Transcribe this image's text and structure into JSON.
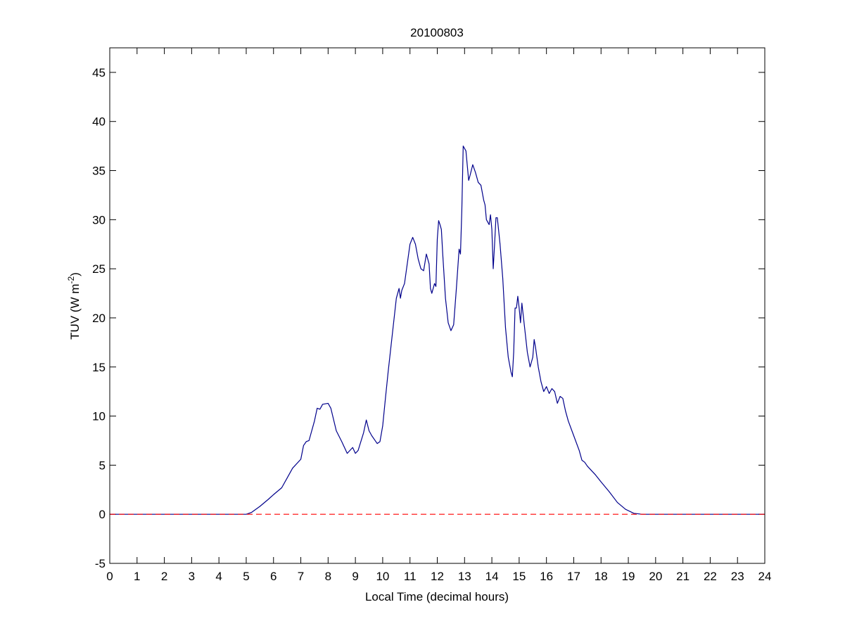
{
  "chart_data": {
    "type": "line",
    "title": "20100803",
    "xlabel": "Local Time (decimal hours)",
    "ylabel": {
      "base": "TUV (W m",
      "superscript": "-2",
      "suffix": ")"
    },
    "xlim": [
      0,
      24
    ],
    "ylim": [
      -5,
      47.5
    ],
    "xticks": [
      0,
      1,
      2,
      3,
      4,
      5,
      6,
      7,
      8,
      9,
      10,
      11,
      12,
      13,
      14,
      15,
      16,
      17,
      18,
      19,
      20,
      21,
      22,
      23,
      24
    ],
    "yticks": [
      -5,
      0,
      5,
      10,
      15,
      20,
      25,
      30,
      35,
      40,
      45
    ],
    "grid": false,
    "reference_line": {
      "value": 0,
      "color": "#ff0000",
      "style": "dashed"
    },
    "x": [
      0,
      5.0,
      5.2,
      5.5,
      5.8,
      6.0,
      6.3,
      6.5,
      6.7,
      7.0,
      7.1,
      7.2,
      7.3,
      7.5,
      7.6,
      7.7,
      7.8,
      8.0,
      8.1,
      8.3,
      8.5,
      8.7,
      8.9,
      9.0,
      9.1,
      9.3,
      9.4,
      9.5,
      9.6,
      9.8,
      9.9,
      10.0,
      10.1,
      10.2,
      10.3,
      10.4,
      10.5,
      10.6,
      10.65,
      10.7,
      10.8,
      10.9,
      11.0,
      11.1,
      11.2,
      11.3,
      11.4,
      11.5,
      11.6,
      11.7,
      11.75,
      11.8,
      11.9,
      11.95,
      12.0,
      12.05,
      12.1,
      12.15,
      12.2,
      12.3,
      12.4,
      12.5,
      12.6,
      12.7,
      12.8,
      12.85,
      12.9,
      12.95,
      13.05,
      13.1,
      13.15,
      13.2,
      13.3,
      13.4,
      13.5,
      13.6,
      13.7,
      13.75,
      13.8,
      13.9,
      13.95,
      14.0,
      14.05,
      14.1,
      14.15,
      14.2,
      14.3,
      14.4,
      14.5,
      14.6,
      14.7,
      14.75,
      14.8,
      14.85,
      14.9,
      14.95,
      15.0,
      15.05,
      15.1,
      15.2,
      15.3,
      15.4,
      15.5,
      15.55,
      15.6,
      15.7,
      15.8,
      15.9,
      16.0,
      16.1,
      16.2,
      16.3,
      16.4,
      16.5,
      16.6,
      16.7,
      16.8,
      17.0,
      17.2,
      17.3,
      17.4,
      17.5,
      17.8,
      18.0,
      18.3,
      18.6,
      18.9,
      19.2,
      19.5,
      24
    ],
    "series": [
      {
        "color": "#00008b",
        "values": [
          0,
          0,
          0.2,
          0.8,
          1.5,
          2.0,
          2.7,
          3.7,
          4.7,
          5.6,
          7.0,
          7.4,
          7.5,
          9.5,
          10.8,
          10.7,
          11.2,
          11.3,
          10.8,
          8.5,
          7.4,
          6.2,
          6.8,
          6.2,
          6.5,
          8.3,
          9.6,
          8.5,
          8.0,
          7.2,
          7.4,
          9.0,
          11.8,
          14.5,
          17.0,
          19.5,
          22.0,
          23.0,
          22.0,
          22.8,
          23.5,
          25.5,
          27.5,
          28.2,
          27.5,
          26.0,
          25.0,
          24.8,
          26.5,
          25.5,
          23.0,
          22.5,
          23.5,
          23.2,
          28.0,
          29.9,
          29.5,
          29.0,
          26.5,
          22.0,
          19.5,
          18.7,
          19.3,
          23.0,
          27.0,
          26.5,
          31.0,
          37.5,
          37.0,
          35.5,
          34.0,
          34.5,
          35.6,
          34.8,
          33.8,
          33.5,
          32.0,
          31.5,
          30.0,
          29.5,
          30.5,
          29.0,
          25.0,
          27.5,
          30.2,
          30.2,
          27.5,
          24.0,
          19.0,
          16.0,
          14.5,
          14.0,
          16.5,
          21.0,
          21.0,
          22.2,
          21.0,
          19.5,
          21.5,
          19.0,
          16.5,
          15.0,
          16.0,
          17.8,
          17.0,
          15.0,
          13.5,
          12.5,
          13.0,
          12.3,
          12.8,
          12.5,
          11.3,
          12.0,
          11.8,
          10.5,
          9.5,
          8.0,
          6.5,
          5.5,
          5.3,
          4.9,
          4.0,
          3.3,
          2.3,
          1.2,
          0.5,
          0.1,
          0,
          0
        ]
      }
    ]
  }
}
